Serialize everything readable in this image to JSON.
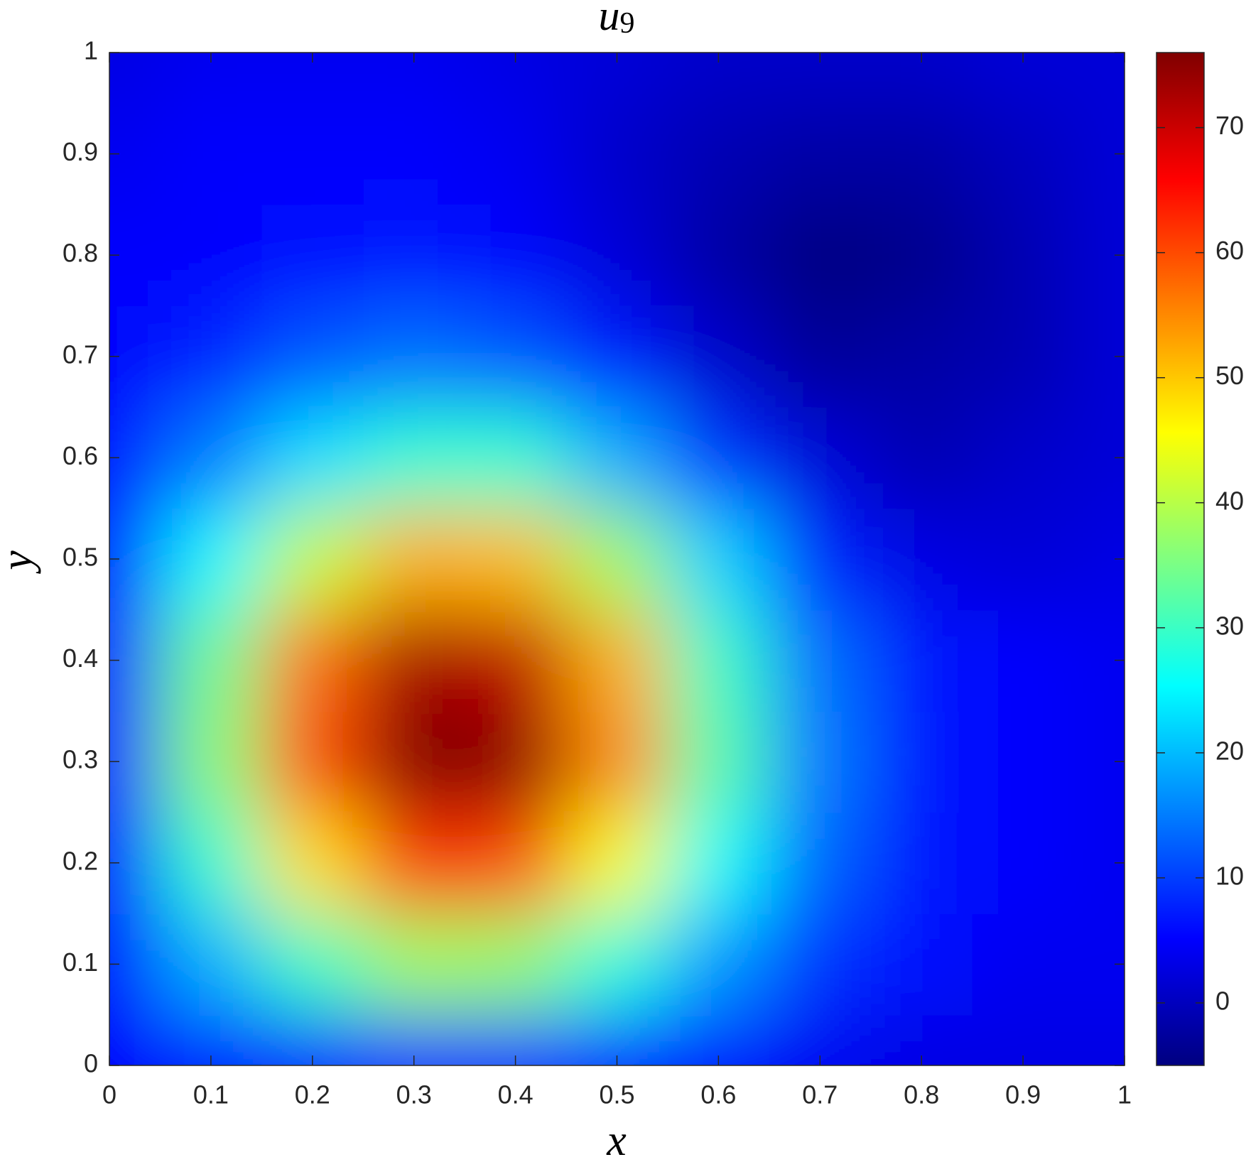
{
  "chart_data": {
    "type": "heatmap",
    "title": "u",
    "title_subscript": "9",
    "x_label": "x",
    "y_label": "y",
    "x": [
      0,
      0.1,
      0.2,
      0.3,
      0.4,
      0.5,
      0.6,
      0.7,
      0.8,
      0.9,
      1
    ],
    "y": [
      0,
      0.1,
      0.2,
      0.3,
      0.4,
      0.5,
      0.6,
      0.7,
      0.8,
      0.9,
      1
    ],
    "z": [
      [
        5,
        7,
        8,
        9,
        9,
        8,
        6,
        4,
        3,
        3,
        3
      ],
      [
        6,
        19,
        30,
        38,
        37,
        28,
        17,
        9,
        6,
        4,
        4
      ],
      [
        7,
        29,
        48,
        62,
        60,
        45,
        26,
        13,
        7,
        5,
        4
      ],
      [
        8,
        36,
        60,
        76,
        75,
        55,
        32,
        15,
        7,
        5,
        4
      ],
      [
        8,
        34,
        57,
        73,
        71,
        52,
        30,
        14,
        7,
        5,
        4
      ],
      [
        7,
        25,
        41,
        52,
        51,
        38,
        22,
        8,
        3,
        2,
        3
      ],
      [
        6,
        15,
        23,
        29,
        29,
        19,
        9,
        2,
        -1,
        1,
        2
      ],
      [
        5,
        8,
        12,
        14,
        12,
        7,
        1,
        -3,
        -2,
        -1,
        2
      ],
      [
        5,
        5,
        6,
        7,
        5,
        2,
        -2,
        -5,
        -4,
        -1,
        2
      ],
      [
        4,
        5,
        5,
        5,
        4,
        1,
        -1,
        -2,
        -2,
        0,
        2
      ],
      [
        3,
        4,
        4,
        4,
        3,
        2,
        1,
        1,
        1,
        2,
        2
      ]
    ],
    "xlim": [
      0,
      1
    ],
    "ylim": [
      0,
      1
    ],
    "xticks": [
      0,
      0.1,
      0.2,
      0.3,
      0.4,
      0.5,
      0.6,
      0.7,
      0.8,
      0.9,
      1
    ],
    "yticks": [
      0,
      0.1,
      0.2,
      0.3,
      0.4,
      0.5,
      0.6,
      0.7,
      0.8,
      0.9,
      1
    ],
    "colormap": "jet",
    "clim": [
      -5,
      76
    ],
    "colorbar_ticks": [
      0,
      10,
      20,
      30,
      40,
      50,
      60,
      70
    ]
  }
}
